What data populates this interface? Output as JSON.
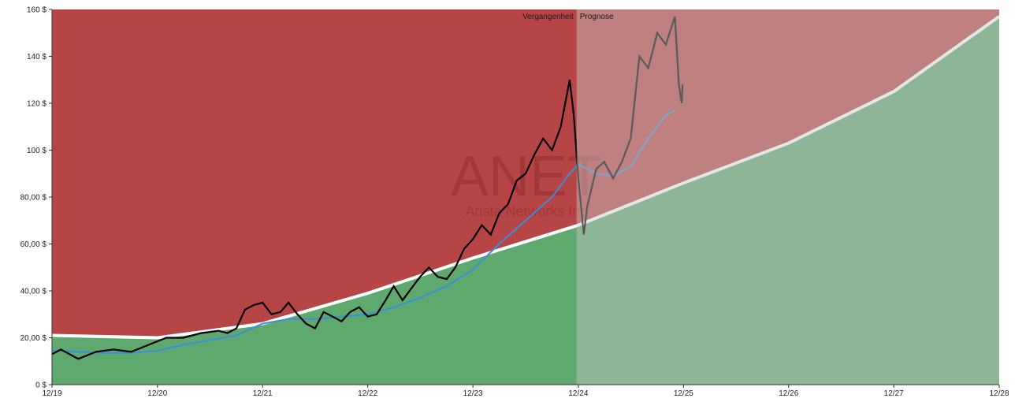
{
  "chart_data": {
    "type": "line",
    "watermark": {
      "ticker": "ANET",
      "company": "Arista Networks Inc"
    },
    "zones": {
      "past_label": "Vergangenheit",
      "forecast_label": "Prognose",
      "split_date": "2024-11-25"
    },
    "x_ticks": [
      "12/19",
      "12/20",
      "12/21",
      "12/22",
      "12/23",
      "12/24",
      "12/25",
      "12/26",
      "12/27",
      "12/28"
    ],
    "y_ticks": [
      "0 $",
      "20,00 $",
      "40,00 $",
      "60,00 $",
      "80,00 $",
      "100 $",
      "120 $",
      "140 $",
      "160 $"
    ],
    "xlim": [
      "2019-12-01",
      "2028-12-01"
    ],
    "ylim": [
      0,
      160
    ],
    "colors": {
      "overvalued_zone": "#b84545",
      "undervalued_zone": "#5fa86e",
      "fair_value_line": "#ffffff",
      "price_line": "#000000",
      "moving_average_line": "#3a8fdc",
      "forecast_overlay": "#c8c8c8"
    },
    "series": [
      {
        "role": "fair_value",
        "points": [
          [
            "2019-12",
            21
          ],
          [
            "2020-12",
            20
          ],
          [
            "2021-12",
            26
          ],
          [
            "2022-12",
            39
          ],
          [
            "2023-12",
            54
          ],
          [
            "2024-12",
            68
          ],
          [
            "2025-12",
            86
          ],
          [
            "2026-12",
            103
          ],
          [
            "2027-12",
            125
          ],
          [
            "2028-12",
            157
          ]
        ]
      },
      {
        "role": "price",
        "points": [
          [
            "2019-12",
            13
          ],
          [
            "2020-01",
            15
          ],
          [
            "2020-03",
            11
          ],
          [
            "2020-05",
            14
          ],
          [
            "2020-07",
            15
          ],
          [
            "2020-09",
            14
          ],
          [
            "2020-11",
            17
          ],
          [
            "2021-01",
            20
          ],
          [
            "2021-03",
            20
          ],
          [
            "2021-05",
            22
          ],
          [
            "2021-07",
            23
          ],
          [
            "2021-08",
            22
          ],
          [
            "2021-09",
            24
          ],
          [
            "2021-10",
            32
          ],
          [
            "2021-11",
            34
          ],
          [
            "2021-12",
            35
          ],
          [
            "2022-01",
            30
          ],
          [
            "2022-02",
            31
          ],
          [
            "2022-03",
            35
          ],
          [
            "2022-04",
            30
          ],
          [
            "2022-05",
            26
          ],
          [
            "2022-06",
            24
          ],
          [
            "2022-07",
            31
          ],
          [
            "2022-08",
            29
          ],
          [
            "2022-09",
            27
          ],
          [
            "2022-10",
            31
          ],
          [
            "2022-11",
            33
          ],
          [
            "2022-12",
            29
          ],
          [
            "2023-01",
            30
          ],
          [
            "2023-02",
            36
          ],
          [
            "2023-03",
            42
          ],
          [
            "2023-04",
            36
          ],
          [
            "2023-05",
            41
          ],
          [
            "2023-06",
            46
          ],
          [
            "2023-07",
            50
          ],
          [
            "2023-08",
            46
          ],
          [
            "2023-09",
            45
          ],
          [
            "2023-10",
            50
          ],
          [
            "2023-11",
            58
          ],
          [
            "2023-12",
            62
          ],
          [
            "2024-01",
            68
          ],
          [
            "2024-02",
            64
          ],
          [
            "2024-03",
            73
          ],
          [
            "2024-04",
            77
          ],
          [
            "2024-05",
            87
          ],
          [
            "2024-06",
            90
          ],
          [
            "2024-07",
            98
          ],
          [
            "2024-08",
            105
          ],
          [
            "2024-09",
            100
          ],
          [
            "2024-10",
            110
          ],
          [
            "2024-11",
            130
          ],
          [
            "2024-11-15",
            115
          ],
          [
            "2024-12",
            88
          ],
          [
            "2024-12-20",
            64
          ],
          [
            "2025-01",
            76
          ],
          [
            "2025-02",
            92
          ],
          [
            "2025-03",
            95
          ],
          [
            "2025-04",
            88
          ],
          [
            "2025-05",
            95
          ],
          [
            "2025-06",
            105
          ],
          [
            "2025-07",
            140
          ],
          [
            "2025-08",
            135
          ],
          [
            "2025-09",
            150
          ],
          [
            "2025-10",
            145
          ],
          [
            "2025-11",
            157
          ],
          [
            "2025-11-15",
            128
          ],
          [
            "2025-11-25",
            120
          ],
          [
            "2025-11-28",
            128
          ]
        ]
      },
      {
        "role": "moving_average",
        "points": [
          [
            "2019-12",
            14.5
          ],
          [
            "2020-03",
            14
          ],
          [
            "2020-06",
            13.5
          ],
          [
            "2020-09",
            13.5
          ],
          [
            "2020-12",
            14.5
          ],
          [
            "2021-03",
            17
          ],
          [
            "2021-06",
            19
          ],
          [
            "2021-09",
            21
          ],
          [
            "2021-12",
            26
          ],
          [
            "2022-03",
            28
          ],
          [
            "2022-06",
            28
          ],
          [
            "2022-09",
            29
          ],
          [
            "2022-12",
            30
          ],
          [
            "2023-03",
            33
          ],
          [
            "2023-06",
            37
          ],
          [
            "2023-09",
            42
          ],
          [
            "2023-12",
            49
          ],
          [
            "2024-03",
            60
          ],
          [
            "2024-06",
            70
          ],
          [
            "2024-09",
            80
          ],
          [
            "2024-11",
            90
          ],
          [
            "2024-12",
            94
          ],
          [
            "2025-02",
            90
          ],
          [
            "2025-04",
            89
          ],
          [
            "2025-06",
            93
          ],
          [
            "2025-08",
            105
          ],
          [
            "2025-10",
            115
          ],
          [
            "2025-11",
            117
          ]
        ]
      }
    ]
  }
}
